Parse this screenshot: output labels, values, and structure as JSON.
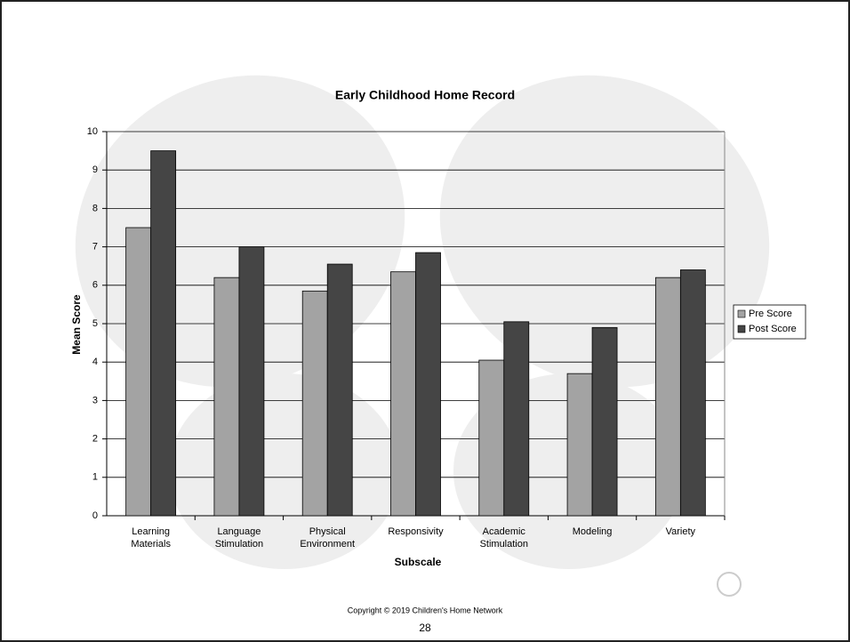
{
  "chart_data": {
    "type": "bar",
    "title": "Early Childhood Home Record",
    "x_label": "Subscale",
    "y_label": "Mean Score",
    "categories": [
      "Learning Materials",
      "Language Stimulation",
      "Physical Environment",
      "Responsivity",
      "Academic Stimulation",
      "Modeling",
      "Variety"
    ],
    "series": [
      {
        "name": "Pre Score",
        "color": "#a3a3a3",
        "values": [
          7.5,
          6.2,
          5.85,
          6.35,
          4.05,
          3.7,
          6.2
        ]
      },
      {
        "name": "Post Score",
        "color": "#454545",
        "values": [
          9.5,
          7.0,
          6.55,
          6.85,
          5.05,
          4.9,
          6.4
        ]
      }
    ],
    "ylim": [
      0,
      10
    ],
    "yticks": [
      0,
      1,
      2,
      3,
      4,
      5,
      6,
      7,
      8,
      9,
      10
    ],
    "grid": true,
    "legend": "right"
  },
  "footer": {
    "copyright": "Copyright © 2019 Children's Home Network",
    "page": "28"
  }
}
